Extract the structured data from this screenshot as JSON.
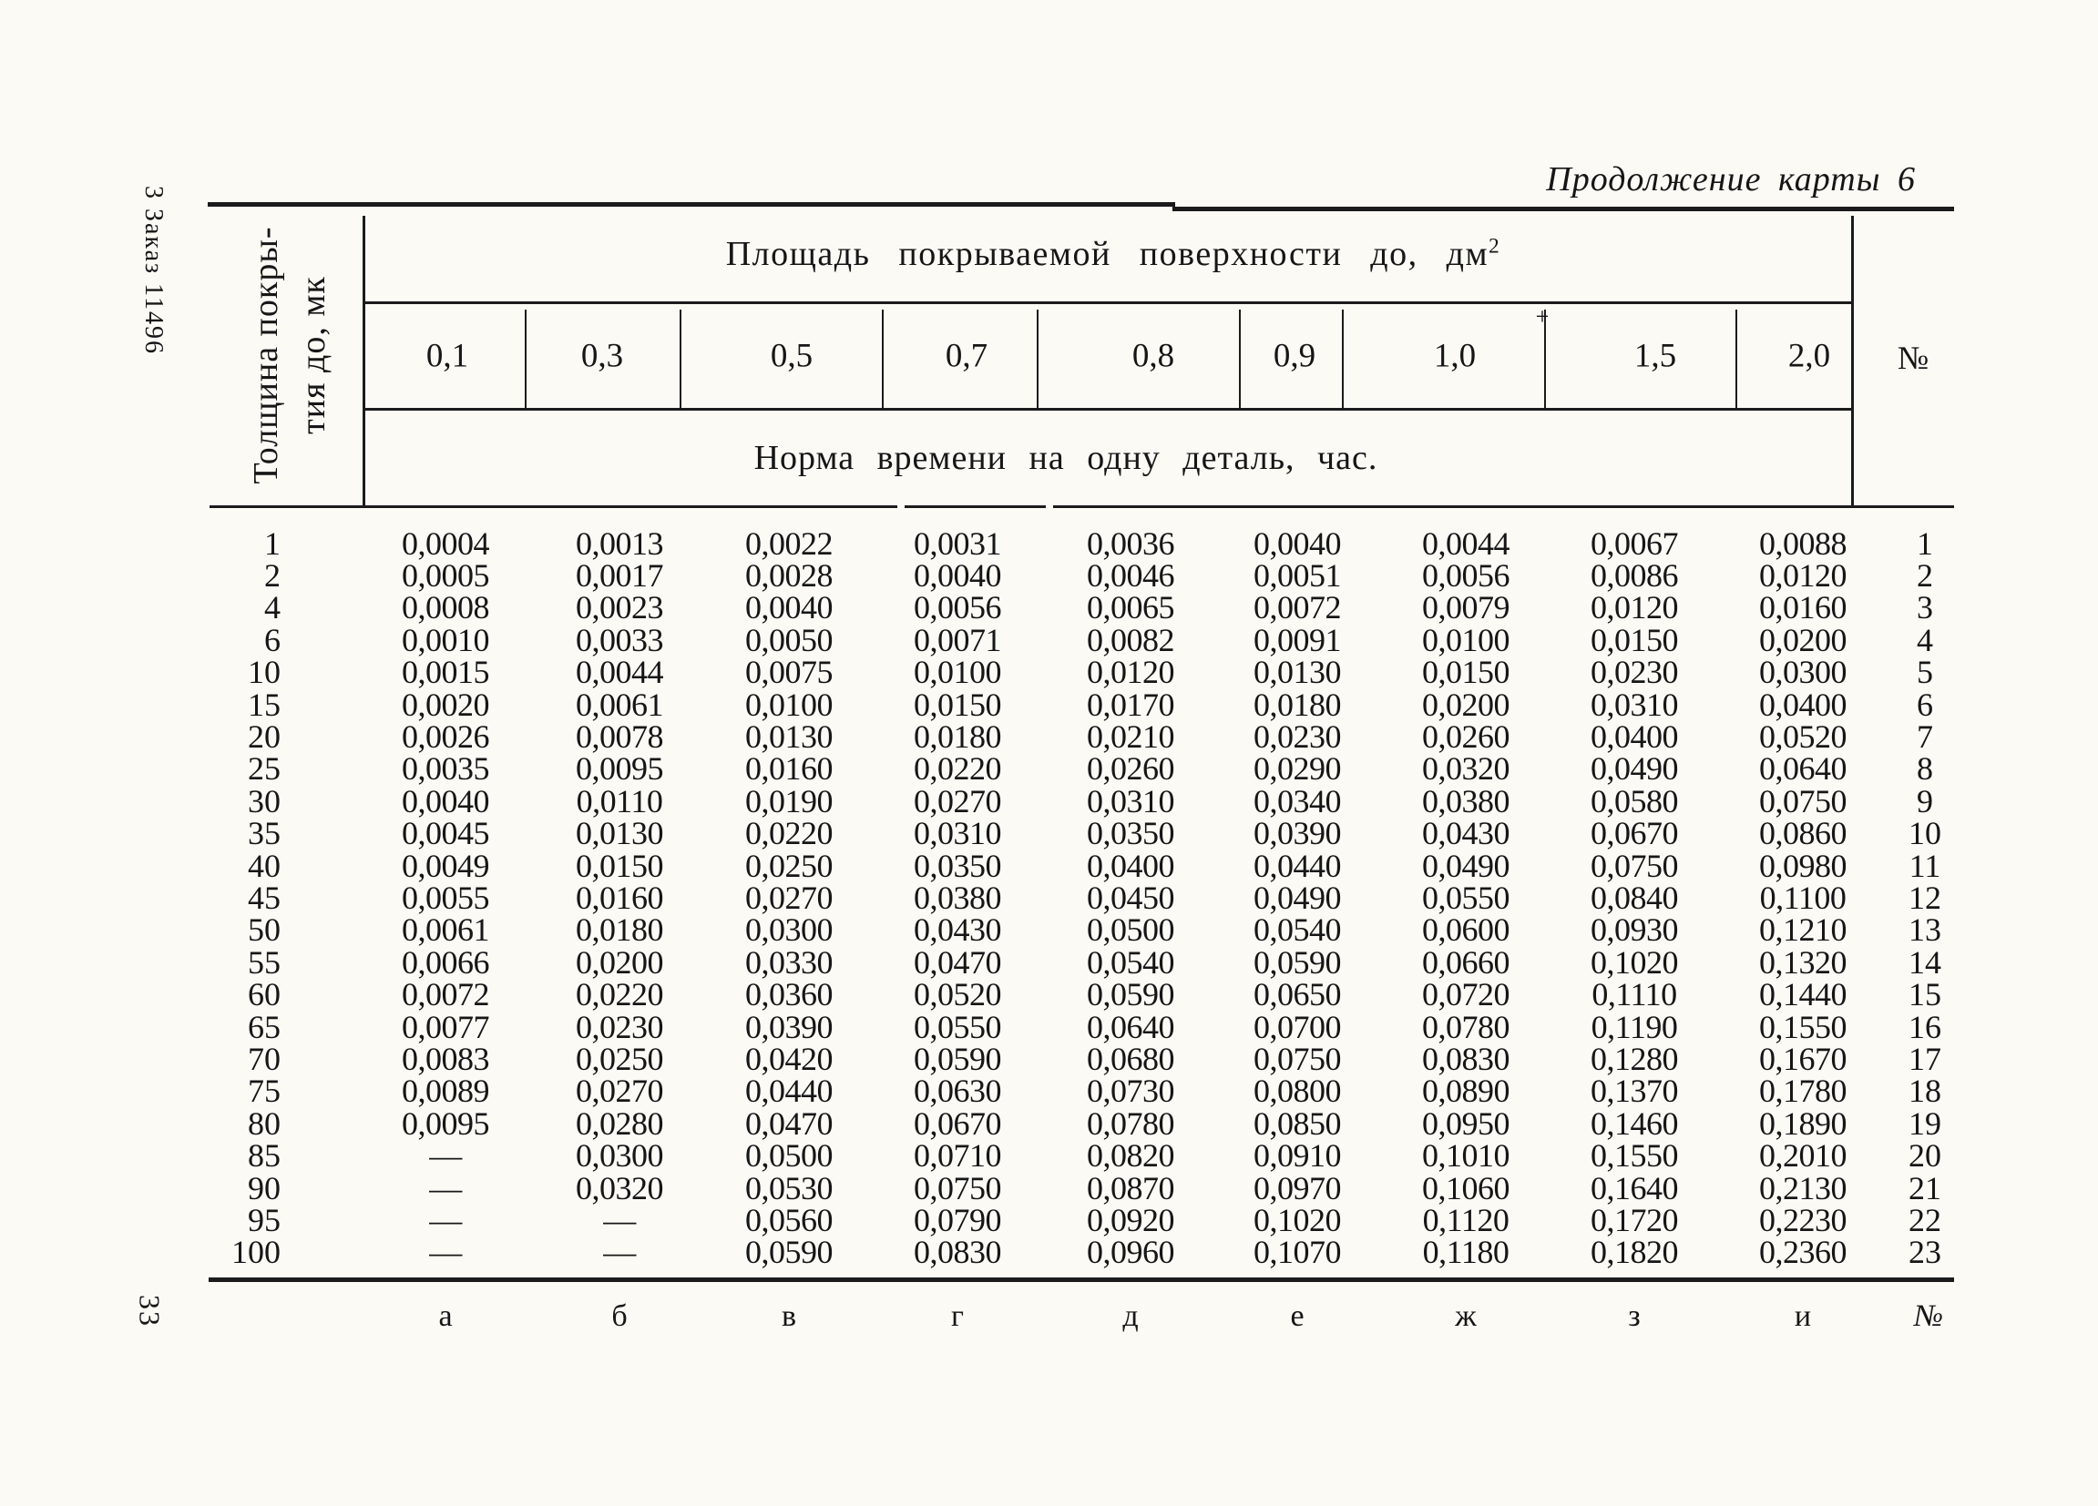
{
  "page": {
    "margin_note": "3 Заказ 11496",
    "page_number": "33",
    "title": "Продолжение карты 6",
    "artifact_plus": "+",
    "ink_color": "#1b1b1b",
    "paper_color": "#fbfaf5"
  },
  "table": {
    "row_header_line1": "Толщина покры-",
    "row_header_line2": "тия до, мк",
    "area_header": "Площадь покрываемой поверхности до, дм",
    "area_header_sup": "2",
    "area_values": [
      "0,1",
      "0,3",
      "0,5",
      "0,7",
      "0,8",
      "0,9",
      "1,0",
      "1,5",
      "2,0"
    ],
    "number_col_header": "№",
    "norm_header": "Норма времени на одну деталь, час.",
    "rows": [
      {
        "thickness": "1",
        "values": [
          "0,0004",
          "0,0013",
          "0,0022",
          "0,0031",
          "0,0036",
          "0,0040",
          "0,0044",
          "0,0067",
          "0,0088"
        ],
        "num": "1"
      },
      {
        "thickness": "2",
        "values": [
          "0,0005",
          "0,0017",
          "0,0028",
          "0,0040",
          "0,0046",
          "0,0051",
          "0,0056",
          "0,0086",
          "0,0120"
        ],
        "num": "2"
      },
      {
        "thickness": "4",
        "values": [
          "0,0008",
          "0,0023",
          "0,0040",
          "0,0056",
          "0,0065",
          "0,0072",
          "0,0079",
          "0,0120",
          "0,0160"
        ],
        "num": "3"
      },
      {
        "thickness": "6",
        "values": [
          "0,0010",
          "0,0033",
          "0,0050",
          "0,0071",
          "0,0082",
          "0,0091",
          "0,0100",
          "0,0150",
          "0,0200"
        ],
        "num": "4"
      },
      {
        "thickness": "10",
        "values": [
          "0,0015",
          "0,0044",
          "0,0075",
          "0,0100",
          "0,0120",
          "0,0130",
          "0,0150",
          "0,0230",
          "0,0300"
        ],
        "num": "5"
      },
      {
        "thickness": "15",
        "values": [
          "0,0020",
          "0,0061",
          "0,0100",
          "0,0150",
          "0,0170",
          "0,0180",
          "0,0200",
          "0,0310",
          "0,0400"
        ],
        "num": "6"
      },
      {
        "thickness": "20",
        "values": [
          "0,0026",
          "0,0078",
          "0,0130",
          "0,0180",
          "0,0210",
          "0,0230",
          "0,0260",
          "0,0400",
          "0,0520"
        ],
        "num": "7"
      },
      {
        "thickness": "25",
        "values": [
          "0,0035",
          "0,0095",
          "0,0160",
          "0,0220",
          "0,0260",
          "0,0290",
          "0,0320",
          "0,0490",
          "0,0640"
        ],
        "num": "8"
      },
      {
        "thickness": "30",
        "values": [
          "0,0040",
          "0,0110",
          "0,0190",
          "0,0270",
          "0,0310",
          "0,0340",
          "0,0380",
          "0,0580",
          "0,0750"
        ],
        "num": "9"
      },
      {
        "thickness": "35",
        "values": [
          "0,0045",
          "0,0130",
          "0,0220",
          "0,0310",
          "0,0350",
          "0,0390",
          "0,0430",
          "0,0670",
          "0,0860"
        ],
        "num": "10"
      },
      {
        "thickness": "40",
        "values": [
          "0,0049",
          "0,0150",
          "0,0250",
          "0,0350",
          "0,0400",
          "0,0440",
          "0,0490",
          "0,0750",
          "0,0980"
        ],
        "num": "11"
      },
      {
        "thickness": "45",
        "values": [
          "0,0055",
          "0,0160",
          "0,0270",
          "0,0380",
          "0,0450",
          "0,0490",
          "0,0550",
          "0,0840",
          "0,1100"
        ],
        "num": "12"
      },
      {
        "thickness": "50",
        "values": [
          "0,0061",
          "0,0180",
          "0,0300",
          "0,0430",
          "0,0500",
          "0,0540",
          "0,0600",
          "0,0930",
          "0,1210"
        ],
        "num": "13"
      },
      {
        "thickness": "55",
        "values": [
          "0,0066",
          "0,0200",
          "0,0330",
          "0,0470",
          "0,0540",
          "0,0590",
          "0,0660",
          "0,1020",
          "0,1320"
        ],
        "num": "14"
      },
      {
        "thickness": "60",
        "values": [
          "0,0072",
          "0,0220",
          "0,0360",
          "0,0520",
          "0,0590",
          "0,0650",
          "0,0720",
          "0,1110",
          "0,1440"
        ],
        "num": "15"
      },
      {
        "thickness": "65",
        "values": [
          "0,0077",
          "0,0230",
          "0,0390",
          "0,0550",
          "0,0640",
          "0,0700",
          "0,0780",
          "0,1190",
          "0,1550"
        ],
        "num": "16"
      },
      {
        "thickness": "70",
        "values": [
          "0,0083",
          "0,0250",
          "0,0420",
          "0,0590",
          "0,0680",
          "0,0750",
          "0,0830",
          "0,1280",
          "0,1670"
        ],
        "num": "17"
      },
      {
        "thickness": "75",
        "values": [
          "0,0089",
          "0,0270",
          "0,0440",
          "0,0630",
          "0,0730",
          "0,0800",
          "0,0890",
          "0,1370",
          "0,1780"
        ],
        "num": "18"
      },
      {
        "thickness": "80",
        "values": [
          "0,0095",
          "0,0280",
          "0,0470",
          "0,0670",
          "0,0780",
          "0,0850",
          "0,0950",
          "0,1460",
          "0,1890"
        ],
        "num": "19"
      },
      {
        "thickness": "85",
        "values": [
          "—",
          "0,0300",
          "0,0500",
          "0,0710",
          "0,0820",
          "0,0910",
          "0,1010",
          "0,1550",
          "0,2010"
        ],
        "num": "20"
      },
      {
        "thickness": "90",
        "values": [
          "—",
          "0,0320",
          "0,0530",
          "0,0750",
          "0,0870",
          "0,0970",
          "0,1060",
          "0,1640",
          "0,2130"
        ],
        "num": "21"
      },
      {
        "thickness": "95",
        "values": [
          "—",
          "—",
          "0,0560",
          "0,0790",
          "0,0920",
          "0,1020",
          "0,1120",
          "0,1720",
          "0,2230"
        ],
        "num": "22"
      },
      {
        "thickness": "100",
        "values": [
          "—",
          "—",
          "0,0590",
          "0,0830",
          "0,0960",
          "0,1070",
          "0,1180",
          "0,1820",
          "0,2360"
        ],
        "num": "23"
      }
    ],
    "footer_letters": [
      "а",
      "б",
      "в",
      "г",
      "д",
      "е",
      "ж",
      "з",
      "и"
    ],
    "footer_number_label": "№"
  }
}
